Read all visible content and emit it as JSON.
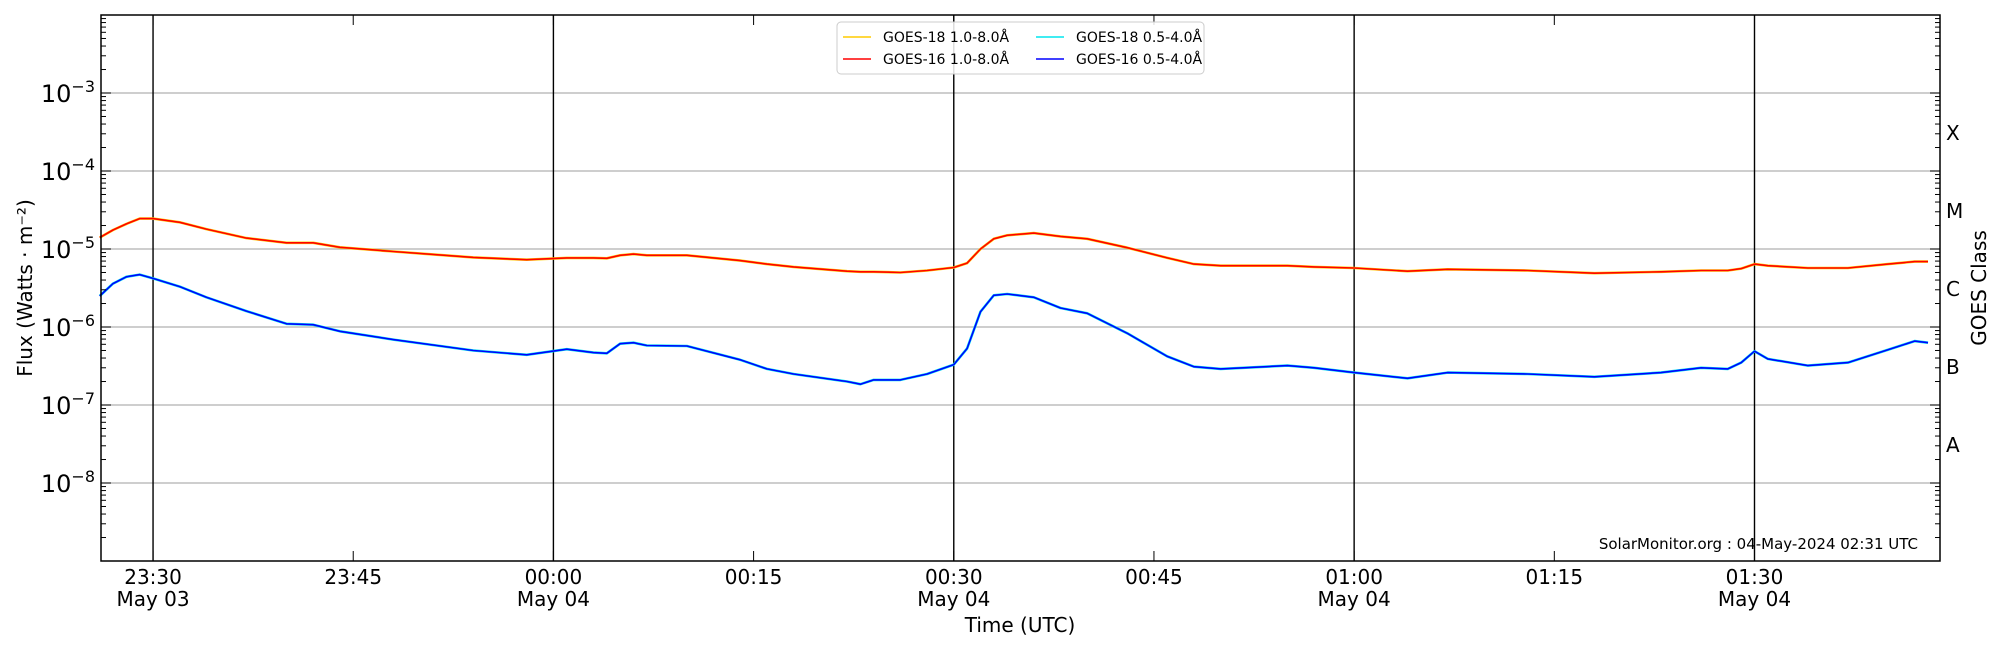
{
  "chart_data": {
    "type": "line",
    "xlabel": "Time (UTC)",
    "ylabel": "Flux (Watts · m⁻²)",
    "ylabel_right": "GOES Class",
    "yscale": "log",
    "ylim": [
      1e-09,
      0.01
    ],
    "xlim": [
      "2024-05-03 23:26:06",
      "2024-05-04 01:43:54"
    ],
    "grid": "horizontal at decades",
    "legend_position": "top-center",
    "annotation": "SolarMonitor.org : 04-May-2024 02:31 UTC",
    "y_ticks": [
      {
        "value": 0.001,
        "base": "10",
        "exp": "−3"
      },
      {
        "value": 0.0001,
        "base": "10",
        "exp": "−4"
      },
      {
        "value": 1e-05,
        "base": "10",
        "exp": "−5"
      },
      {
        "value": 1e-06,
        "base": "10",
        "exp": "−6"
      },
      {
        "value": 1e-07,
        "base": "10",
        "exp": "−7"
      },
      {
        "value": 1e-08,
        "base": "10",
        "exp": "−8"
      }
    ],
    "goes_classes": [
      {
        "label": "X",
        "value": 0.000316
      },
      {
        "label": "M",
        "value": 3.16e-05
      },
      {
        "label": "C",
        "value": 3.16e-06
      },
      {
        "label": "B",
        "value": 3.16e-07
      },
      {
        "label": "A",
        "value": 3.16e-08
      }
    ],
    "x_ticks": [
      {
        "time": "2024-05-03 23:30",
        "label": "23:30",
        "date": "May 03",
        "vline": true
      },
      {
        "time": "2024-05-03 23:45",
        "label": "23:45",
        "date": "",
        "vline": false
      },
      {
        "time": "2024-05-04 00:00",
        "label": "00:00",
        "date": "May 04",
        "vline": true
      },
      {
        "time": "2024-05-04 00:15",
        "label": "00:15",
        "date": "",
        "vline": false
      },
      {
        "time": "2024-05-04 00:30",
        "label": "00:30",
        "date": "May 04",
        "vline": true
      },
      {
        "time": "2024-05-04 00:45",
        "label": "00:45",
        "date": "",
        "vline": false
      },
      {
        "time": "2024-05-04 01:00",
        "label": "01:00",
        "date": "May 04",
        "vline": true
      },
      {
        "time": "2024-05-04 01:15",
        "label": "01:15",
        "date": "",
        "vline": false
      },
      {
        "time": "2024-05-04 01:30",
        "label": "01:30",
        "date": "May 04",
        "vline": true
      }
    ],
    "x": [
      "2024-05-03 23:26",
      "2024-05-03 23:27",
      "2024-05-03 23:28",
      "2024-05-03 23:29",
      "2024-05-03 23:30",
      "2024-05-03 23:32",
      "2024-05-03 23:34",
      "2024-05-03 23:37",
      "2024-05-03 23:40",
      "2024-05-03 23:42",
      "2024-05-03 23:44",
      "2024-05-03 23:48",
      "2024-05-03 23:54",
      "2024-05-03 23:58",
      "2024-05-04 00:01",
      "2024-05-04 00:03",
      "2024-05-04 00:04",
      "2024-05-04 00:05",
      "2024-05-04 00:06",
      "2024-05-04 00:07",
      "2024-05-04 00:10",
      "2024-05-04 00:14",
      "2024-05-04 00:16",
      "2024-05-04 00:18",
      "2024-05-04 00:22",
      "2024-05-04 00:23",
      "2024-05-04 00:24",
      "2024-05-04 00:26",
      "2024-05-04 00:28",
      "2024-05-04 00:30",
      "2024-05-04 00:31",
      "2024-05-04 00:32",
      "2024-05-04 00:33",
      "2024-05-04 00:34",
      "2024-05-04 00:36",
      "2024-05-04 00:38",
      "2024-05-04 00:40",
      "2024-05-04 00:43",
      "2024-05-04 00:46",
      "2024-05-04 00:48",
      "2024-05-04 00:50",
      "2024-05-04 00:55",
      "2024-05-04 00:57",
      "2024-05-04 01:00",
      "2024-05-04 01:04",
      "2024-05-04 01:07",
      "2024-05-04 01:13",
      "2024-05-04 01:18",
      "2024-05-04 01:23",
      "2024-05-04 01:26",
      "2024-05-04 01:28",
      "2024-05-04 01:29",
      "2024-05-04 01:30",
      "2024-05-04 01:31",
      "2024-05-04 01:34",
      "2024-05-04 01:37",
      "2024-05-04 01:40",
      "2024-05-04 01:42",
      "2024-05-04 01:43"
    ],
    "series": [
      {
        "name": "GOES-18 1.0-8.0Å",
        "color": "#ffcc00",
        "values": [
          1.4e-05,
          1.75e-05,
          2.1e-05,
          2.45e-05,
          2.45e-05,
          2.2e-05,
          1.8e-05,
          1.38e-05,
          1.2e-05,
          1.2e-05,
          1.05e-05,
          9.3e-06,
          7.8e-06,
          7.3e-06,
          7.7e-06,
          7.7e-06,
          7.6e-06,
          8.3e-06,
          8.6e-06,
          8.3e-06,
          8.3e-06,
          7.1e-06,
          6.4e-06,
          5.9e-06,
          5.2e-06,
          5.1e-06,
          5.1e-06,
          5e-06,
          5.3e-06,
          5.8e-06,
          6.6e-06,
          1e-05,
          1.35e-05,
          1.5e-05,
          1.6e-05,
          1.45e-05,
          1.35e-05,
          1.04e-05,
          7.7e-06,
          6.4e-06,
          6.1e-06,
          6.1e-06,
          5.9e-06,
          5.7e-06,
          5.2e-06,
          5.5e-06,
          5.3e-06,
          4.9e-06,
          5.1e-06,
          5.3e-06,
          5.3e-06,
          5.6e-06,
          6.4e-06,
          6.1e-06,
          5.7e-06,
          5.7e-06,
          6.4e-06,
          6.9e-06,
          6.9e-06
        ]
      },
      {
        "name": "GOES-18 0.5-4.0Å",
        "color": "#00e5ee",
        "values": [
          2.5e-06,
          3.6e-06,
          4.4e-06,
          4.7e-06,
          4.2e-06,
          3.3e-06,
          2.4e-06,
          1.6e-06,
          1.1e-06,
          1.07e-06,
          8.8e-07,
          6.9e-07,
          5e-07,
          4.4e-07,
          5.2e-07,
          4.7e-07,
          4.6e-07,
          6.1e-07,
          6.3e-07,
          5.8e-07,
          5.7e-07,
          3.8e-07,
          2.9e-07,
          2.5e-07,
          2e-07,
          1.85e-07,
          2.1e-07,
          2.1e-07,
          2.5e-07,
          3.3e-07,
          5.3e-07,
          1.57e-06,
          2.55e-06,
          2.65e-06,
          2.4e-06,
          1.75e-06,
          1.5e-06,
          8.3e-07,
          4.2e-07,
          3.1e-07,
          2.9e-07,
          3.2e-07,
          3e-07,
          2.6e-07,
          2.2e-07,
          2.6e-07,
          2.5e-07,
          2.3e-07,
          2.6e-07,
          3e-07,
          2.9e-07,
          3.5e-07,
          4.9e-07,
          3.9e-07,
          3.2e-07,
          3.5e-07,
          5.1e-07,
          6.6e-07,
          6.3e-07
        ]
      },
      {
        "name": "GOES-16 1.0-8.0Å",
        "color": "#ff0000",
        "values": [
          1.4e-05,
          1.75e-05,
          2.1e-05,
          2.45e-05,
          2.45e-05,
          2.2e-05,
          1.8e-05,
          1.38e-05,
          1.2e-05,
          1.2e-05,
          1.05e-05,
          9.3e-06,
          7.8e-06,
          7.3e-06,
          7.7e-06,
          7.7e-06,
          7.6e-06,
          8.3e-06,
          8.6e-06,
          8.3e-06,
          8.3e-06,
          7.1e-06,
          6.4e-06,
          5.9e-06,
          5.2e-06,
          5.1e-06,
          5.1e-06,
          5e-06,
          5.3e-06,
          5.8e-06,
          6.6e-06,
          1e-05,
          1.35e-05,
          1.5e-05,
          1.6e-05,
          1.45e-05,
          1.35e-05,
          1.04e-05,
          7.7e-06,
          6.4e-06,
          6.1e-06,
          6.1e-06,
          5.9e-06,
          5.7e-06,
          5.2e-06,
          5.5e-06,
          5.3e-06,
          4.9e-06,
          5.1e-06,
          5.3e-06,
          5.3e-06,
          5.6e-06,
          6.4e-06,
          6.1e-06,
          5.7e-06,
          5.7e-06,
          6.4e-06,
          6.9e-06,
          6.9e-06
        ]
      },
      {
        "name": "GOES-16 0.5-4.0Å",
        "color": "#0000ff",
        "values": [
          2.5e-06,
          3.6e-06,
          4.4e-06,
          4.7e-06,
          4.2e-06,
          3.3e-06,
          2.4e-06,
          1.6e-06,
          1.1e-06,
          1.07e-06,
          8.8e-07,
          6.9e-07,
          5e-07,
          4.4e-07,
          5.2e-07,
          4.7e-07,
          4.6e-07,
          6.1e-07,
          6.3e-07,
          5.8e-07,
          5.7e-07,
          3.8e-07,
          2.9e-07,
          2.5e-07,
          2e-07,
          1.85e-07,
          2.1e-07,
          2.1e-07,
          2.5e-07,
          3.3e-07,
          5.3e-07,
          1.57e-06,
          2.55e-06,
          2.65e-06,
          2.4e-06,
          1.75e-06,
          1.5e-06,
          8.3e-07,
          4.2e-07,
          3.1e-07,
          2.9e-07,
          3.2e-07,
          3e-07,
          2.6e-07,
          2.2e-07,
          2.6e-07,
          2.5e-07,
          2.3e-07,
          2.6e-07,
          3e-07,
          2.9e-07,
          3.5e-07,
          4.9e-07,
          3.9e-07,
          3.2e-07,
          3.5e-07,
          5.1e-07,
          6.6e-07,
          6.3e-07
        ]
      }
    ]
  }
}
